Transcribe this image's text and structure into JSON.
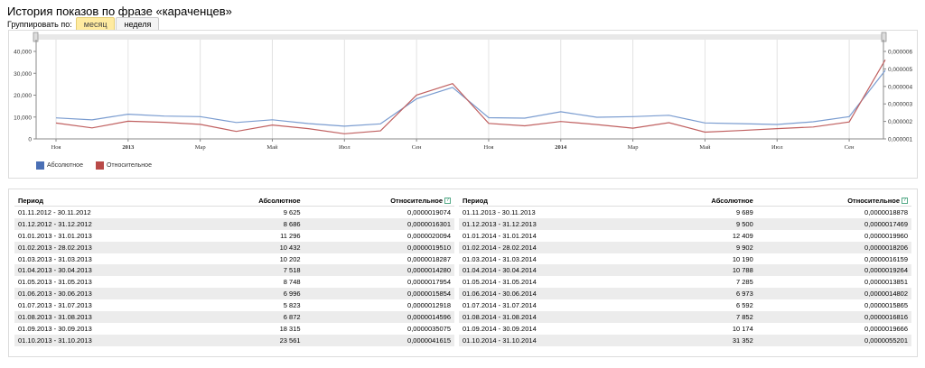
{
  "page_title": "История показов по фразе «караченцев»",
  "group_by": {
    "label": "Группировать по:",
    "options": [
      "месяц",
      "неделя"
    ],
    "selected": "месяц"
  },
  "chart_data": {
    "type": "line",
    "x": [
      "2012-11",
      "2012-12",
      "2013-01",
      "2013-02",
      "2013-03",
      "2013-04",
      "2013-05",
      "2013-06",
      "2013-07",
      "2013-08",
      "2013-09",
      "2013-10",
      "2013-11",
      "2013-12",
      "2014-01",
      "2014-02",
      "2014-03",
      "2014-04",
      "2014-05",
      "2014-06",
      "2014-07",
      "2014-08",
      "2014-09",
      "2014-10"
    ],
    "x_tick_labels": [
      {
        "i": 0,
        "label": "Ноя",
        "bold": false
      },
      {
        "i": 2,
        "label": "2013",
        "bold": true
      },
      {
        "i": 4,
        "label": "Мар",
        "bold": false
      },
      {
        "i": 6,
        "label": "Май",
        "bold": false
      },
      {
        "i": 8,
        "label": "Июл",
        "bold": false
      },
      {
        "i": 10,
        "label": "Сен",
        "bold": false
      },
      {
        "i": 12,
        "label": "Ноя",
        "bold": false
      },
      {
        "i": 14,
        "label": "2014",
        "bold": true
      },
      {
        "i": 16,
        "label": "Мар",
        "bold": false
      },
      {
        "i": 18,
        "label": "Май",
        "bold": false
      },
      {
        "i": 20,
        "label": "Июл",
        "bold": false
      },
      {
        "i": 22,
        "label": "Сен",
        "bold": false
      }
    ],
    "series": [
      {
        "name": "Абсолютное",
        "axis": "left",
        "color": "#7a9cd0",
        "values": [
          9625,
          8686,
          11296,
          10432,
          10202,
          7518,
          8748,
          6996,
          5823,
          6872,
          18315,
          23561,
          9689,
          9500,
          12409,
          9902,
          10190,
          10788,
          7285,
          6973,
          6592,
          7852,
          10174,
          31352
        ]
      },
      {
        "name": "Относительное",
        "axis": "right",
        "color": "#c06060",
        "values": [
          1.9074e-06,
          1.6301e-06,
          2.0094e-06,
          1.951e-06,
          1.8287e-06,
          1.428e-06,
          1.7954e-06,
          1.5854e-06,
          1.2918e-06,
          1.4596e-06,
          3.5075e-06,
          4.1615e-06,
          1.8878e-06,
          1.7469e-06,
          1.996e-06,
          1.8206e-06,
          1.6159e-06,
          1.9264e-06,
          1.3851e-06,
          1.4802e-06,
          1.5865e-06,
          1.6816e-06,
          1.9666e-06,
          5.5201e-06
        ]
      }
    ],
    "y_left": {
      "ticks": [
        "0",
        "10,000",
        "20,000",
        "30,000",
        "40,000"
      ],
      "min": 0,
      "max": 40000
    },
    "y_right": {
      "ticks": [
        "0,000001",
        "0,000002",
        "0,000003",
        "0,000004",
        "0,000005",
        "0,000006"
      ],
      "min": 1e-06,
      "max": 6e-06
    },
    "grid": true,
    "legend_position": "bottom-left"
  },
  "legend": {
    "abs": "Абсолютное",
    "rel": "Относительное",
    "abs_color": "#4a6fb5",
    "rel_color": "#b94a48"
  },
  "table": {
    "headers": {
      "period": "Период",
      "abs": "Абсолютное",
      "rel": "Относительное"
    },
    "left": [
      {
        "period": "01.11.2012 - 30.11.2012",
        "abs": "9 625",
        "rel": "0,0000019074"
      },
      {
        "period": "01.12.2012 - 31.12.2012",
        "abs": "8 686",
        "rel": "0,0000016301"
      },
      {
        "period": "01.01.2013 - 31.01.2013",
        "abs": "11 296",
        "rel": "0,0000020094"
      },
      {
        "period": "01.02.2013 - 28.02.2013",
        "abs": "10 432",
        "rel": "0,0000019510"
      },
      {
        "period": "01.03.2013 - 31.03.2013",
        "abs": "10 202",
        "rel": "0,0000018287"
      },
      {
        "period": "01.04.2013 - 30.04.2013",
        "abs": "7 518",
        "rel": "0,0000014280"
      },
      {
        "period": "01.05.2013 - 31.05.2013",
        "abs": "8 748",
        "rel": "0,0000017954"
      },
      {
        "period": "01.06.2013 - 30.06.2013",
        "abs": "6 996",
        "rel": "0,0000015854"
      },
      {
        "period": "01.07.2013 - 31.07.2013",
        "abs": "5 823",
        "rel": "0,0000012918"
      },
      {
        "period": "01.08.2013 - 31.08.2013",
        "abs": "6 872",
        "rel": "0,0000014596"
      },
      {
        "period": "01.09.2013 - 30.09.2013",
        "abs": "18 315",
        "rel": "0,0000035075"
      },
      {
        "period": "01.10.2013 - 31.10.2013",
        "abs": "23 561",
        "rel": "0,0000041615"
      }
    ],
    "right": [
      {
        "period": "01.11.2013 - 30.11.2013",
        "abs": "9 689",
        "rel": "0,0000018878"
      },
      {
        "period": "01.12.2013 - 31.12.2013",
        "abs": "9 500",
        "rel": "0,0000017469"
      },
      {
        "period": "01.01.2014 - 31.01.2014",
        "abs": "12 409",
        "rel": "0,0000019960"
      },
      {
        "period": "01.02.2014 - 28.02.2014",
        "abs": "9 902",
        "rel": "0,0000018206"
      },
      {
        "period": "01.03.2014 - 31.03.2014",
        "abs": "10 190",
        "rel": "0,0000016159"
      },
      {
        "period": "01.04.2014 - 30.04.2014",
        "abs": "10 788",
        "rel": "0,0000019264"
      },
      {
        "period": "01.05.2014 - 31.05.2014",
        "abs": "7 285",
        "rel": "0,0000013851"
      },
      {
        "period": "01.06.2014 - 30.06.2014",
        "abs": "6 973",
        "rel": "0,0000014802"
      },
      {
        "period": "01.07.2014 - 31.07.2014",
        "abs": "6 592",
        "rel": "0,0000015865"
      },
      {
        "period": "01.08.2014 - 31.08.2014",
        "abs": "7 852",
        "rel": "0,0000016816"
      },
      {
        "period": "01.09.2014 - 30.09.2014",
        "abs": "10 174",
        "rel": "0,0000019666"
      },
      {
        "period": "01.10.2014 - 31.10.2014",
        "abs": "31 352",
        "rel": "0,0000055201"
      }
    ]
  }
}
